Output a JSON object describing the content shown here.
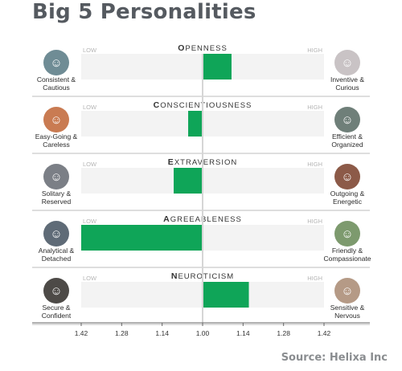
{
  "title": "Big 5 Personalities",
  "source": "Source: Helixa Inc",
  "colors": {
    "bar": "#0fa558",
    "track": "#f3f3f3",
    "midline": "#d6d6d6",
    "axis": "#666666"
  },
  "low_label": "LOW",
  "high_label": "HIGH",
  "chart_data": {
    "type": "bar",
    "orientation": "horizontal-diverging",
    "title": "Big 5 Personalities",
    "baseline": 1.0,
    "x_ticks": [
      "1.42",
      "1.28",
      "1.14",
      "1.00",
      "1.14",
      "1.28",
      "1.42"
    ],
    "x_range": [
      -0.42,
      0.42
    ],
    "categories": [
      "OPENNESS",
      "CONSCIENTIOUSNESS",
      "EXTRAVERSION",
      "AGREEABLENESS",
      "NEUROTICISM"
    ],
    "values": [
      0.1,
      -0.05,
      -0.1,
      -0.42,
      0.16
    ],
    "low_traits": [
      "Consistent & Cautious",
      "Easy-Going & Careless",
      "Solitary & Reserved",
      "Analytical & Detached",
      "Secure & Confident"
    ],
    "high_traits": [
      "Inventive & Curious",
      "Efficient & Organized",
      "Outgoing & Energetic",
      "Friendly & Compassionate",
      "Sensitive & Nervous"
    ]
  },
  "rows": [
    {
      "initial": "O",
      "rest": "PENNESS",
      "low": [
        "Consistent &",
        "Cautious"
      ],
      "high": [
        "Inventive &",
        "Curious"
      ],
      "low_icon": "traveler-photo-icon",
      "high_icon": "artist-photo-icon",
      "low_color": "#6f8c95",
      "high_color": "#c9c3c5"
    },
    {
      "initial": "C",
      "rest": "ONSCIENTIOUSNESS",
      "low": [
        "Easy-Going &",
        "Careless"
      ],
      "high": [
        "Efficient &",
        "Organized"
      ],
      "low_icon": "relaxed-person-photo-icon",
      "high_icon": "worker-photo-icon",
      "low_color": "#c97b52",
      "high_color": "#6f7f79"
    },
    {
      "initial": "E",
      "rest": "XTRAVERSION",
      "low": [
        "Solitary &",
        "Reserved"
      ],
      "high": [
        "Outgoing &",
        "Energetic"
      ],
      "low_icon": "reader-photo-icon",
      "high_icon": "laughing-woman-photo-icon",
      "low_color": "#7b7f86",
      "high_color": "#8c5a48"
    },
    {
      "initial": "A",
      "rest": "GREEABLENESS",
      "low": [
        "Analytical &",
        "Detached"
      ],
      "high": [
        "Friendly &",
        "Compassionate"
      ],
      "low_icon": "analyst-photo-icon",
      "high_icon": "friends-photo-icon",
      "low_color": "#5f6b77",
      "high_color": "#7d9a6e"
    },
    {
      "initial": "N",
      "rest": "EUROTICISM",
      "low": [
        "Secure &",
        "Confident"
      ],
      "high": [
        "Sensitive &",
        "Nervous"
      ],
      "low_icon": "confident-man-photo-icon",
      "high_icon": "nervous-woman-photo-icon",
      "low_color": "#4d4a47",
      "high_color": "#b59a86"
    }
  ]
}
